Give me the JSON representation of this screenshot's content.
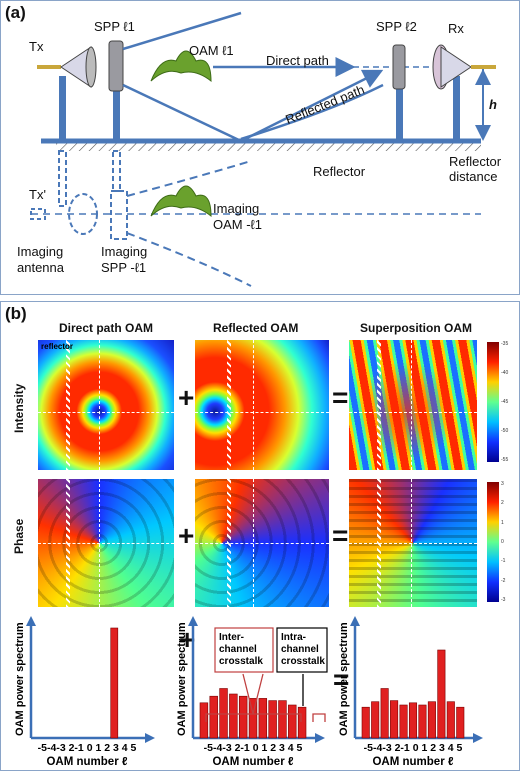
{
  "panel_a": {
    "label": "(a)",
    "tx": "Tx",
    "spp1": "SPP ℓ1",
    "oam1": "OAM ℓ1",
    "direct_path": "Direct path",
    "spp2": "SPP ℓ2",
    "rx": "Rx",
    "h": "h",
    "reflected_path": "Reflected path",
    "reflector": "Reflector",
    "reflector_distance_1": "Reflector",
    "reflector_distance_2": "distance",
    "tx_prime": "Tx'",
    "imaging_oam_1": "Imaging",
    "imaging_oam_2": "OAM -ℓ1",
    "imaging_antenna_1": "Imaging",
    "imaging_antenna_2": "antenna",
    "imaging_spp_1": "Imaging",
    "imaging_spp_2": "SPP -ℓ1"
  },
  "panel_b": {
    "label": "(b)",
    "col1": "Direct path OAM",
    "col2": "Reflected OAM",
    "col3": "Superposition OAM",
    "reflector_tag": "reflector",
    "row_intensity": "Intensity",
    "row_phase": "Phase",
    "plus": "+",
    "equals": "=",
    "intensity_ticks": [
      "-35",
      "-40",
      "-45",
      "-50",
      "-55"
    ],
    "phase_ticks": [
      "3",
      "2",
      "1",
      "0",
      "-1",
      "-2",
      "-3"
    ],
    "spectrum_ylabel": "OAM power spectrum",
    "spectrum_xlabel": "OAM number ℓ",
    "spectrum_ticks": "-5-4-3 2-1 0 1 2 3 4 5",
    "inter_channel": [
      "Inter-",
      "channel",
      "crosstalk"
    ],
    "intra_channel": [
      "Intra-",
      "channel",
      "crosstalk"
    ],
    "colors": {
      "bar": "#e02020",
      "axis": "#3b6fb6",
      "hot": "#e8211d",
      "cold": "#1a2fd0"
    }
  },
  "chart_data": [
    {
      "type": "bar",
      "categories": [
        "-5",
        "-4",
        "-3",
        "-2",
        "-1",
        "0",
        "1",
        "2",
        "3",
        "4",
        "5"
      ],
      "values": [
        0,
        0,
        0,
        0,
        0,
        0,
        0,
        0,
        1.0,
        0,
        0
      ],
      "xlabel": "OAM number ℓ",
      "ylabel": "OAM power spectrum"
    },
    {
      "type": "bar",
      "categories": [
        "-5",
        "-4",
        "-3",
        "-2",
        "-1",
        "0",
        "1",
        "2",
        "3",
        "4",
        "5"
      ],
      "values": [
        0.32,
        0.38,
        0.45,
        0.4,
        0.38,
        0.36,
        0.36,
        0.34,
        0.34,
        0.3,
        0.28
      ],
      "xlabel": "OAM number ℓ",
      "ylabel": "OAM power spectrum"
    },
    {
      "type": "bar",
      "categories": [
        "-5",
        "-4",
        "-3",
        "-2",
        "-1",
        "0",
        "1",
        "2",
        "3",
        "4",
        "5"
      ],
      "values": [
        0.28,
        0.33,
        0.45,
        0.34,
        0.3,
        0.32,
        0.3,
        0.33,
        0.8,
        0.33,
        0.28
      ],
      "xlabel": "OAM number ℓ",
      "ylabel": "OAM power spectrum"
    }
  ]
}
